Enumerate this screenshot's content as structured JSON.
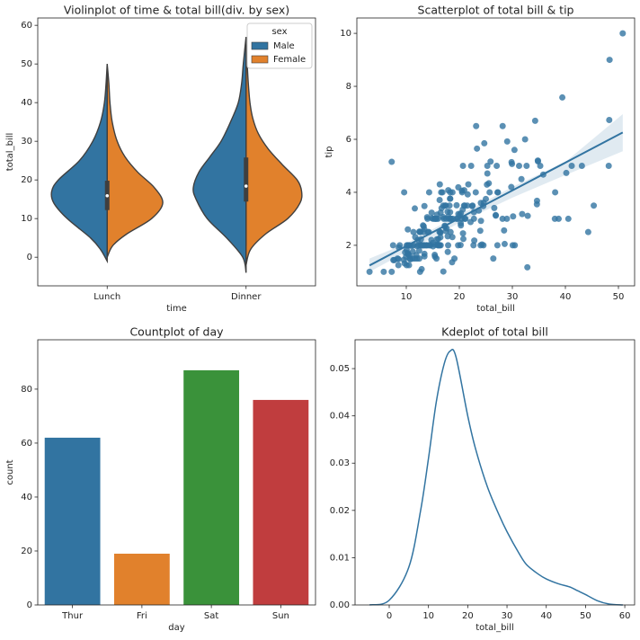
{
  "chart_data": [
    {
      "type": "violin",
      "title": "Violinplot of time & total bill(div. by sex)",
      "xlabel": "time",
      "ylabel": "total_bill",
      "categories": [
        "Lunch",
        "Dinner"
      ],
      "ylim": [
        -7.4,
        61.9
      ],
      "yticks": [
        0,
        10,
        20,
        30,
        40,
        50,
        60
      ],
      "legend_title": "sex",
      "legend": "upper right",
      "series": [
        {
          "name": "Male",
          "color": "#3274a1",
          "violins": [
            {
              "y": [
                -1,
                2,
                5,
                10,
                14,
                17,
                20,
                25,
                30,
                35,
                40,
                45,
                50
              ],
              "density": [
                0,
                0.12,
                0.3,
                0.72,
                0.96,
                1.0,
                0.88,
                0.5,
                0.26,
                0.12,
                0.05,
                0.02,
                0
              ]
            },
            {
              "y": [
                -4,
                0,
                5,
                10,
                15,
                18,
                22,
                26,
                30,
                35,
                40,
                45,
                50,
                57
              ],
              "density": [
                0,
                0.06,
                0.35,
                0.7,
                0.9,
                0.95,
                0.85,
                0.65,
                0.45,
                0.28,
                0.14,
                0.08,
                0.05,
                0
              ]
            }
          ]
        },
        {
          "name": "Female",
          "color": "#e1812c",
          "violins": [
            {
              "y": [
                0,
                3,
                6,
                10,
                14,
                18,
                22,
                26,
                30,
                35,
                40,
                45,
                50
              ],
              "density": [
                0,
                0.1,
                0.35,
                0.8,
                1.0,
                0.85,
                0.55,
                0.32,
                0.18,
                0.09,
                0.05,
                0.03,
                0
              ]
            },
            {
              "y": [
                -2,
                2,
                6,
                10,
                14,
                17,
                20,
                24,
                28,
                32,
                36,
                40,
                45,
                50,
                55
              ],
              "density": [
                0,
                0.08,
                0.35,
                0.75,
                0.97,
                1.0,
                0.92,
                0.65,
                0.4,
                0.22,
                0.12,
                0.07,
                0.04,
                0.02,
                0
              ]
            }
          ]
        }
      ],
      "boxes": [
        {
          "whisker_low": 0,
          "q1": 12.2,
          "median": 15.9,
          "q3": 19.8,
          "whisker_high": 43
        },
        {
          "whisker_low": 3,
          "q1": 14.4,
          "median": 18.4,
          "q3": 25.8,
          "whisker_high": 48
        }
      ]
    },
    {
      "type": "scatter",
      "title": "Scatterplot of total bill & tip",
      "xlabel": "total_bill",
      "ylabel": "tip",
      "color": "#3274a1",
      "xlim": [
        0.68,
        53.05
      ],
      "xticks": [
        10,
        20,
        30,
        40,
        50
      ],
      "ylim": [
        0.47,
        10.58
      ],
      "yticks": [
        2,
        4,
        6,
        8,
        10
      ],
      "x": [
        16.99,
        10.34,
        21.01,
        23.68,
        24.59,
        25.29,
        8.77,
        26.88,
        15.04,
        14.78,
        10.27,
        35.26,
        15.42,
        18.43,
        14.83,
        21.58,
        10.33,
        16.29,
        16.97,
        20.65,
        17.92,
        20.29,
        15.77,
        39.42,
        19.82,
        17.81,
        13.37,
        12.69,
        21.7,
        19.65,
        9.55,
        18.35,
        15.06,
        20.69,
        17.78,
        24.06,
        16.31,
        16.93,
        18.69,
        31.27,
        16.04,
        17.46,
        13.94,
        9.68,
        30.4,
        18.29,
        22.23,
        32.4,
        28.55,
        18.04,
        12.54,
        10.29,
        34.81,
        9.94,
        25.56,
        19.49,
        38.01,
        26.41,
        11.24,
        48.27,
        20.29,
        13.81,
        11.02,
        18.29,
        17.59,
        20.08,
        16.45,
        3.07,
        20.23,
        15.01,
        12.02,
        17.07,
        26.86,
        25.28,
        14.73,
        10.51,
        17.92,
        27.2,
        22.76,
        17.29,
        19.44,
        16.66,
        10.07,
        32.68,
        15.98,
        34.83,
        13.03,
        18.28,
        24.71,
        21.16,
        28.97,
        22.49,
        5.75,
        16.32,
        22.75,
        40.17,
        27.28,
        12.03,
        21.01,
        12.46,
        11.35,
        15.38,
        44.3,
        22.42,
        20.92,
        15.36,
        20.49,
        25.21,
        18.24,
        14.31,
        14.0,
        7.25,
        38.07,
        23.95,
        25.71,
        17.31,
        29.93,
        10.65,
        12.43,
        24.08,
        11.69,
        13.42,
        14.26,
        15.95,
        12.48,
        29.8,
        8.52,
        14.52,
        11.38,
        22.82,
        19.08,
        20.27,
        11.17,
        12.26,
        18.26,
        8.51,
        10.33,
        14.15,
        16.0,
        13.16,
        17.47,
        34.3,
        41.19,
        27.05,
        16.43,
        8.35,
        18.64,
        11.87,
        9.78,
        7.51,
        14.07,
        13.13,
        17.26,
        24.55,
        19.77,
        29.85,
        48.17,
        25.0,
        13.39,
        16.49,
        21.5,
        12.66,
        16.21,
        13.81,
        17.51,
        24.52,
        20.76,
        31.71,
        10.59,
        10.63,
        50.81,
        15.81,
        7.25,
        31.85,
        16.82,
        32.9,
        17.89,
        14.48,
        9.6,
        34.63,
        34.65,
        23.33,
        45.35,
        23.17,
        40.55,
        20.69,
        20.9,
        30.46,
        18.15,
        23.1,
        15.69,
        19.81,
        28.44,
        15.48,
        16.58,
        7.56,
        10.34,
        43.11,
        13.0,
        13.51,
        18.71,
        12.74,
        13.0,
        16.4,
        20.53,
        16.47,
        26.59,
        38.73,
        24.27,
        12.76,
        30.06,
        25.89,
        48.33,
        13.27,
        28.17,
        12.9,
        28.15,
        11.59,
        7.74,
        30.14,
        12.16,
        13.42,
        8.58,
        15.98,
        13.42,
        16.27,
        10.09,
        20.45,
        13.28,
        22.12,
        24.01,
        15.69,
        11.61,
        10.77,
        15.53,
        10.07,
        12.6,
        32.83,
        35.83,
        29.03,
        27.18,
        22.67,
        17.82,
        18.78
      ],
      "values": [
        1.01,
        1.66,
        3.5,
        3.31,
        3.61,
        4.71,
        2.0,
        3.12,
        1.96,
        3.23,
        1.71,
        5.0,
        1.57,
        3.0,
        3.02,
        3.92,
        1.67,
        3.71,
        3.5,
        3.35,
        4.08,
        2.75,
        2.23,
        7.58,
        3.18,
        2.34,
        2.0,
        2.0,
        4.3,
        3.0,
        1.45,
        2.5,
        3.0,
        2.45,
        3.27,
        3.6,
        2.0,
        3.07,
        2.31,
        5.0,
        2.24,
        2.54,
        3.06,
        1.32,
        5.6,
        3.0,
        5.0,
        6.0,
        2.05,
        3.0,
        2.5,
        2.6,
        5.2,
        1.56,
        4.34,
        3.51,
        3.0,
        1.5,
        1.76,
        6.73,
        3.21,
        2.0,
        1.98,
        3.76,
        2.64,
        3.15,
        2.47,
        1.0,
        2.01,
        2.09,
        1.97,
        3.0,
        3.14,
        5.0,
        2.2,
        1.25,
        3.08,
        4.0,
        3.0,
        2.71,
        3.0,
        3.4,
        1.83,
        5.0,
        2.03,
        5.17,
        2.0,
        4.0,
        5.85,
        3.0,
        3.0,
        3.5,
        1.0,
        4.3,
        3.25,
        4.73,
        4.0,
        1.5,
        3.0,
        1.5,
        2.5,
        3.0,
        2.5,
        3.48,
        4.08,
        1.64,
        4.06,
        4.29,
        3.76,
        4.0,
        3.0,
        1.0,
        4.0,
        2.55,
        4.0,
        3.5,
        5.07,
        1.5,
        1.8,
        2.92,
        2.31,
        1.68,
        2.5,
        2.0,
        2.52,
        4.2,
        1.48,
        2.0,
        2.0,
        2.18,
        1.5,
        2.83,
        1.5,
        2.0,
        3.25,
        1.25,
        2.0,
        2.0,
        2.0,
        2.75,
        3.5,
        6.7,
        5.0,
        5.0,
        2.3,
        1.5,
        1.36,
        1.63,
        1.73,
        2.0,
        2.5,
        2.0,
        2.74,
        2.0,
        2.0,
        5.14,
        5.0,
        3.75,
        2.61,
        2.0,
        3.5,
        2.5,
        2.0,
        2.0,
        3.0,
        3.48,
        2.24,
        4.5,
        1.61,
        2.0,
        10.0,
        3.16,
        5.15,
        3.18,
        4.0,
        3.11,
        2.0,
        2.0,
        4.0,
        3.55,
        3.68,
        5.65,
        3.5,
        6.5,
        3.0,
        5.0,
        3.5,
        2.0,
        3.5,
        4.0,
        1.5,
        4.19,
        2.56,
        2.02,
        4.0,
        1.44,
        2.0,
        5.0,
        2.0,
        2.0,
        4.0,
        2.01,
        2.0,
        2.5,
        4.0,
        3.23,
        3.41,
        3.0,
        2.03,
        2.23,
        2.0,
        5.16,
        9.0,
        2.5,
        6.5,
        1.1,
        3.0,
        1.5,
        1.44,
        3.09,
        2.2,
        3.48,
        1.92,
        3.0,
        1.58,
        2.5,
        2.0,
        3.0,
        2.72,
        2.88,
        2.0,
        3.0,
        3.39,
        1.47,
        3.0,
        1.25,
        1.0,
        1.17,
        4.67,
        5.92,
        2.0,
        2.0,
        1.75,
        3.0
      ],
      "fit": {
        "x": [
          3.07,
          10,
          20,
          30,
          40,
          50.81
        ],
        "values": [
          1.24,
          1.97,
          3.02,
          4.07,
          5.12,
          6.26
        ],
        "ci_lower": [
          1.0,
          1.75,
          2.85,
          3.8,
          4.65,
          5.55
        ],
        "ci_upper": [
          1.5,
          2.07,
          3.15,
          4.2,
          5.15,
          6.95
        ]
      }
    },
    {
      "type": "bar",
      "title": "Countplot of day",
      "xlabel": "day",
      "ylabel": "count",
      "categories": [
        "Thur",
        "Fri",
        "Sat",
        "Sun"
      ],
      "values": [
        62,
        19,
        87,
        76
      ],
      "colors": [
        "#3274a1",
        "#e1812c",
        "#3a923a",
        "#c03d3e"
      ],
      "ylim": [
        0,
        98.3
      ],
      "yticks": [
        0,
        20,
        40,
        60,
        80
      ]
    },
    {
      "type": "line",
      "title": "Kdeplot of total bill",
      "xlabel": "total_bill",
      "color": "#3274a1",
      "xlim": [
        -8.7,
        62.5
      ],
      "xticks": [
        0,
        10,
        20,
        30,
        40,
        50,
        60
      ],
      "ylim": [
        0,
        0.0561
      ],
      "yticks": [
        {
          "value": 0,
          "label": "0.00"
        },
        {
          "value": 0.01,
          "label": "0.01"
        },
        {
          "value": 0.02,
          "label": "0.02"
        },
        {
          "value": 0.03,
          "label": "0.03"
        },
        {
          "value": 0.04,
          "label": "0.04"
        },
        {
          "value": 0.05,
          "label": "0.05"
        }
      ],
      "x": [
        -5,
        0,
        5,
        8,
        10,
        12,
        14,
        15.5,
        17,
        20,
        22,
        25,
        28,
        30,
        33,
        35,
        38,
        40,
        43,
        46,
        48,
        50,
        53,
        56,
        59.5
      ],
      "values": [
        0,
        0.001,
        0.008,
        0.02,
        0.031,
        0.043,
        0.051,
        0.0537,
        0.0525,
        0.04,
        0.033,
        0.025,
        0.019,
        0.0155,
        0.011,
        0.0085,
        0.0065,
        0.0055,
        0.0045,
        0.0038,
        0.003,
        0.0022,
        0.0009,
        0.0002,
        0
      ]
    }
  ]
}
